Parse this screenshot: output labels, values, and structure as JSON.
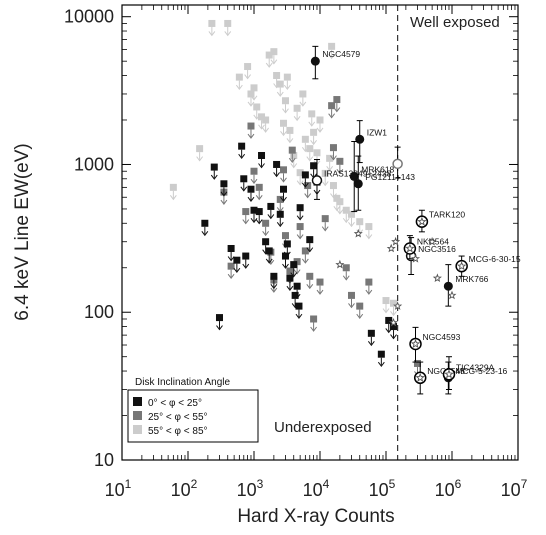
{
  "chart_data": {
    "type": "scatter",
    "xlabel": "Hard X-ray Counts",
    "ylabel": "6.4 keV Line EW(eV)",
    "xscale": "log",
    "yscale": "log",
    "xlim": [
      10,
      10000000
    ],
    "ylim": [
      10,
      12000
    ],
    "grid": false,
    "x_ticks": [
      {
        "base": "10",
        "exp": "1"
      },
      {
        "base": "10",
        "exp": "2"
      },
      {
        "base": "10",
        "exp": "3"
      },
      {
        "base": "10",
        "exp": "4"
      },
      {
        "base": "10",
        "exp": "5"
      },
      {
        "base": "10",
        "exp": "6"
      },
      {
        "base": "10",
        "exp": "7"
      }
    ],
    "y_ticks": [
      "10",
      "100",
      "1000",
      "10000"
    ],
    "y_tick_values": [
      10,
      100,
      1000,
      10000
    ],
    "divider": {
      "x": 150000
    },
    "region_labels": {
      "left": "Underexposed",
      "right": "Well exposed"
    },
    "legend": {
      "title": "Disk Inclination Angle",
      "placement": "bottom-left",
      "entries": [
        {
          "text": "0° < φ < 25°",
          "color": "#111111"
        },
        {
          "text": "25° < φ < 55°",
          "color": "#777777"
        },
        {
          "text": "55° < φ < 85°",
          "color": "#cccccc"
        }
      ]
    },
    "series": [
      {
        "name": "0° < φ < 25°",
        "color": "#111111",
        "upper_limits": [
          [
            180,
            400
          ],
          [
            300,
            92
          ],
          [
            250,
            960
          ],
          [
            350,
            740
          ],
          [
            450,
            270
          ],
          [
            550,
            225
          ],
          [
            700,
            800
          ],
          [
            900,
            680
          ],
          [
            1000,
            490
          ],
          [
            1200,
            480
          ],
          [
            1500,
            300
          ],
          [
            1700,
            260
          ],
          [
            2000,
            175
          ],
          [
            2500,
            460
          ],
          [
            2800,
            680
          ],
          [
            3000,
            240
          ],
          [
            3500,
            170
          ],
          [
            4000,
            210
          ],
          [
            4200,
            130
          ],
          [
            5000,
            510
          ],
          [
            6000,
            850
          ],
          [
            7000,
            310
          ],
          [
            8000,
            980
          ],
          [
            9000,
            760
          ],
          [
            4500,
            150
          ],
          [
            4800,
            110
          ],
          [
            3200,
            290
          ],
          [
            1800,
            520
          ],
          [
            650,
            1330
          ],
          [
            1300,
            1150
          ],
          [
            60000,
            72
          ],
          [
            85000,
            52
          ],
          [
            110000,
            88
          ],
          [
            130000,
            80
          ],
          [
            2200,
            1000
          ],
          [
            750,
            240
          ]
        ],
        "detections": [
          {
            "x": 8500,
            "y": 5000,
            "yerr_lo": 1200,
            "yerr_hi": 1300,
            "label": "NGC4579"
          },
          {
            "x": 40000,
            "y": 1480,
            "yerr_lo": 450,
            "yerr_hi": 500,
            "label": "IZW1"
          },
          {
            "x": 33000,
            "y": 830,
            "yerr_lo": 350,
            "yerr_hi": 600,
            "label": "MRK618"
          },
          {
            "x": 38000,
            "y": 740,
            "yerr_lo": 250,
            "yerr_hi": 400,
            "label": "PG1211+143"
          },
          {
            "x": 880000,
            "y": 150,
            "yerr_lo": 40,
            "yerr_hi": 60,
            "label": "MRK766"
          },
          {
            "x": 880000,
            "y": 36,
            "yerr_lo": 8,
            "yerr_hi": 10,
            "label": "MCG-5-23-16"
          }
        ],
        "open_detections": [
          {
            "x": 9000,
            "y": 780,
            "yerr_lo": 200,
            "yerr_hi": 300,
            "label": "IRAS13349+2438"
          },
          {
            "x": 240000,
            "y": 240,
            "yerr_lo": 60,
            "yerr_hi": 80,
            "label": "NGC3516"
          }
        ]
      },
      {
        "name": "25° < φ < 55°",
        "color": "#777777",
        "upper_limits": [
          [
            350,
            650
          ],
          [
            450,
            205
          ],
          [
            750,
            480
          ],
          [
            1000,
            900
          ],
          [
            1200,
            700
          ],
          [
            1500,
            400
          ],
          [
            1800,
            255
          ],
          [
            2500,
            580
          ],
          [
            3000,
            330
          ],
          [
            3500,
            190
          ],
          [
            4500,
            220
          ],
          [
            5000,
            380
          ],
          [
            6000,
            260
          ],
          [
            7000,
            175
          ],
          [
            8000,
            90
          ],
          [
            10000,
            160
          ],
          [
            12000,
            430
          ],
          [
            15000,
            2500
          ],
          [
            16000,
            1300
          ],
          [
            20000,
            1050
          ],
          [
            25000,
            200
          ],
          [
            30000,
            130
          ],
          [
            40000,
            110
          ],
          [
            55000,
            160
          ],
          [
            2000,
            165
          ],
          [
            3800,
            1250
          ],
          [
            2800,
            920
          ],
          [
            6500,
            720
          ],
          [
            900,
            1820
          ],
          [
            18000,
            2750
          ],
          [
            300000,
            45
          ]
        ],
        "detections": [],
        "open_detections": [
          {
            "x": 150000,
            "y": 1010,
            "yerr_lo": 200,
            "yerr_hi": 300,
            "label": "MRK618 (alt)"
          }
        ]
      },
      {
        "name": "55° < φ < 85°",
        "color": "#cccccc",
        "upper_limits": [
          [
            60,
            700
          ],
          [
            150,
            1280
          ],
          [
            230,
            9000
          ],
          [
            400,
            9000
          ],
          [
            600,
            3900
          ],
          [
            800,
            4600
          ],
          [
            900,
            3000
          ],
          [
            1100,
            2450
          ],
          [
            1300,
            2100
          ],
          [
            1500,
            2000
          ],
          [
            1700,
            5500
          ],
          [
            2000,
            5800
          ],
          [
            2200,
            4000
          ],
          [
            2500,
            3500
          ],
          [
            3000,
            2700
          ],
          [
            3500,
            1700
          ],
          [
            4000,
            1150
          ],
          [
            5000,
            880
          ],
          [
            6000,
            1480
          ],
          [
            7000,
            1280
          ],
          [
            8000,
            1650
          ],
          [
            9000,
            1200
          ],
          [
            10000,
            2000
          ],
          [
            12000,
            870
          ],
          [
            14000,
            1100
          ],
          [
            16000,
            720
          ],
          [
            18000,
            590
          ],
          [
            20000,
            560
          ],
          [
            25000,
            490
          ],
          [
            30000,
            460
          ],
          [
            40000,
            410
          ],
          [
            55000,
            380
          ],
          [
            2800,
            1900
          ],
          [
            4500,
            2400
          ],
          [
            5500,
            3000
          ],
          [
            7500,
            2200
          ],
          [
            1000,
            3300
          ],
          [
            3200,
            3900
          ],
          [
            15000,
            6300
          ],
          [
            100000,
            120
          ],
          [
            130000,
            115
          ]
        ],
        "detections": [],
        "open_detections": []
      }
    ],
    "star_points": [
      {
        "x": 350000,
        "y": 410,
        "yerr_lo": 60,
        "yerr_hi": 80,
        "label": "TARK120"
      },
      {
        "x": 230000,
        "y": 270,
        "yerr_lo": 40,
        "yerr_hi": 60,
        "label": "NKN564"
      },
      {
        "x": 1400000,
        "y": 205,
        "yerr_lo": 30,
        "yerr_hi": 35,
        "label": "MCG-6-30-15"
      },
      {
        "x": 280000,
        "y": 61,
        "yerr_lo": 15,
        "yerr_hi": 18,
        "label": "NGC4593"
      },
      {
        "x": 330000,
        "y": 36,
        "yerr_lo": 8,
        "yerr_hi": 10,
        "label": "NGC5548"
      },
      {
        "x": 900000,
        "y": 38,
        "yerr_lo": 8,
        "yerr_hi": 12,
        "label": "TIC4329A"
      },
      {
        "x": 38000,
        "y": 340,
        "yerr_lo": 0,
        "yerr_hi": 0,
        "label": ""
      },
      {
        "x": 20000,
        "y": 210,
        "yerr_lo": 0,
        "yerr_hi": 0,
        "label": ""
      },
      {
        "x": 120000,
        "y": 270,
        "yerr_lo": 0,
        "yerr_hi": 0,
        "label": ""
      },
      {
        "x": 140000,
        "y": 300,
        "yerr_lo": 0,
        "yerr_hi": 0,
        "label": ""
      },
      {
        "x": 280000,
        "y": 230,
        "yerr_lo": 0,
        "yerr_hi": 0,
        "label": ""
      },
      {
        "x": 500000,
        "y": 300,
        "yerr_lo": 0,
        "yerr_hi": 0,
        "label": ""
      },
      {
        "x": 600000,
        "y": 170,
        "yerr_lo": 0,
        "yerr_hi": 0,
        "label": ""
      },
      {
        "x": 1000000,
        "y": 130,
        "yerr_lo": 0,
        "yerr_hi": 0,
        "label": ""
      },
      {
        "x": 150000,
        "y": 110,
        "yerr_lo": 0,
        "yerr_hi": 0,
        "label": ""
      },
      {
        "x": 130000,
        "y": 85,
        "yerr_lo": 0,
        "yerr_hi": 0,
        "label": ""
      }
    ]
  }
}
